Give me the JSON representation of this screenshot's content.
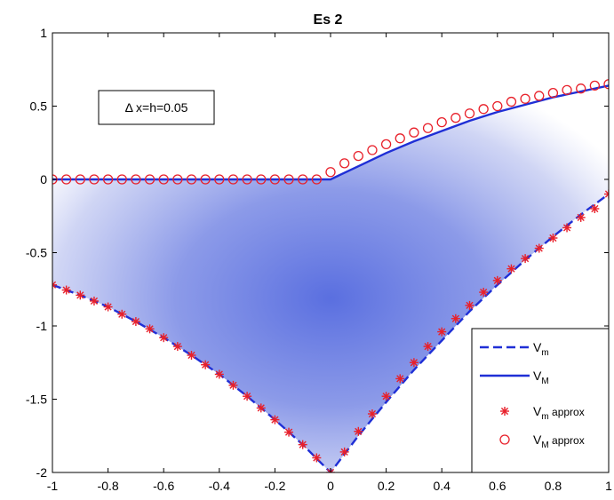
{
  "chart_data": {
    "type": "line",
    "title": "Es 2",
    "xlabel": "",
    "ylabel": "",
    "xlim": [
      -1,
      1
    ],
    "ylim": [
      -2,
      1
    ],
    "xticks": [
      "-1",
      "-0.8",
      "-0.6",
      "-0.4",
      "-0.2",
      "0",
      "0.2",
      "0.4",
      "0.6",
      "0.8",
      "1"
    ],
    "yticks": [
      "-2",
      "-1.5",
      "-1",
      "-0.5",
      "0",
      "0.5",
      "1"
    ],
    "annotation": "Δ x=h=0.05",
    "fill": {
      "color": "#5a6fe0",
      "description_color_edge": "#ffffff"
    },
    "series": [
      {
        "name": "V_m",
        "label_main": "V",
        "label_sub": "m",
        "style": "dashed",
        "color": "#1f2fd6",
        "x": [
          -1,
          -0.9,
          -0.8,
          -0.7,
          -0.6,
          -0.5,
          -0.4,
          -0.3,
          -0.2,
          -0.1,
          0,
          0.1,
          0.2,
          0.3,
          0.4,
          0.5,
          0.6,
          0.7,
          0.8,
          0.9,
          1
        ],
        "values": [
          -0.72,
          -0.79,
          -0.87,
          -0.97,
          -1.08,
          -1.2,
          -1.33,
          -1.48,
          -1.64,
          -1.81,
          -2.0,
          -1.75,
          -1.52,
          -1.3,
          -1.1,
          -0.9,
          -0.72,
          -0.55,
          -0.39,
          -0.24,
          -0.1
        ]
      },
      {
        "name": "V_M",
        "label_main": "V",
        "label_sub": "M",
        "style": "solid",
        "color": "#1f2fd6",
        "x": [
          -1,
          -0.5,
          0,
          0.1,
          0.2,
          0.3,
          0.4,
          0.5,
          0.6,
          0.7,
          0.8,
          0.9,
          1
        ],
        "values": [
          0,
          0,
          0,
          0.09,
          0.18,
          0.26,
          0.33,
          0.4,
          0.46,
          0.51,
          0.56,
          0.6,
          0.64
        ]
      },
      {
        "name": "V_m approx",
        "label_main": "V",
        "label_sub": "m",
        "label_suffix": " approx",
        "style": "marker-star",
        "color": "#e8202a",
        "x": [
          -1,
          -0.95,
          -0.9,
          -0.85,
          -0.8,
          -0.75,
          -0.7,
          -0.65,
          -0.6,
          -0.55,
          -0.5,
          -0.45,
          -0.4,
          -0.35,
          -0.3,
          -0.25,
          -0.2,
          -0.15,
          -0.1,
          -0.05,
          0,
          0.05,
          0.1,
          0.15,
          0.2,
          0.25,
          0.3,
          0.35,
          0.4,
          0.45,
          0.5,
          0.55,
          0.6,
          0.65,
          0.7,
          0.75,
          0.8,
          0.85,
          0.9,
          0.95,
          1
        ],
        "values": [
          -0.72,
          -0.755,
          -0.79,
          -0.83,
          -0.87,
          -0.92,
          -0.97,
          -1.02,
          -1.08,
          -1.14,
          -1.2,
          -1.265,
          -1.33,
          -1.405,
          -1.48,
          -1.56,
          -1.64,
          -1.725,
          -1.81,
          -1.9,
          -2.0,
          -1.86,
          -1.72,
          -1.6,
          -1.48,
          -1.36,
          -1.25,
          -1.14,
          -1.04,
          -0.95,
          -0.86,
          -0.77,
          -0.69,
          -0.61,
          -0.54,
          -0.47,
          -0.4,
          -0.33,
          -0.26,
          -0.2,
          -0.1
        ]
      },
      {
        "name": "V_M approx",
        "label_main": "V",
        "label_sub": "M",
        "label_suffix": " approx",
        "style": "marker-circle",
        "color": "#e8202a",
        "x": [
          -1,
          -0.95,
          -0.9,
          -0.85,
          -0.8,
          -0.75,
          -0.7,
          -0.65,
          -0.6,
          -0.55,
          -0.5,
          -0.45,
          -0.4,
          -0.35,
          -0.3,
          -0.25,
          -0.2,
          -0.15,
          -0.1,
          -0.05,
          0,
          0.05,
          0.1,
          0.15,
          0.2,
          0.25,
          0.3,
          0.35,
          0.4,
          0.45,
          0.5,
          0.55,
          0.6,
          0.65,
          0.7,
          0.75,
          0.8,
          0.85,
          0.9,
          0.95,
          1
        ],
        "values": [
          0,
          0,
          0,
          0,
          0,
          0,
          0,
          0,
          0,
          0,
          0,
          0,
          0,
          0,
          0,
          0,
          0,
          0,
          0,
          0,
          0.05,
          0.11,
          0.16,
          0.2,
          0.24,
          0.28,
          0.32,
          0.35,
          0.39,
          0.42,
          0.45,
          0.48,
          0.5,
          0.53,
          0.55,
          0.57,
          0.59,
          0.61,
          0.62,
          0.64,
          0.65
        ]
      }
    ],
    "grid": false,
    "legend_position": "bottom-right"
  }
}
